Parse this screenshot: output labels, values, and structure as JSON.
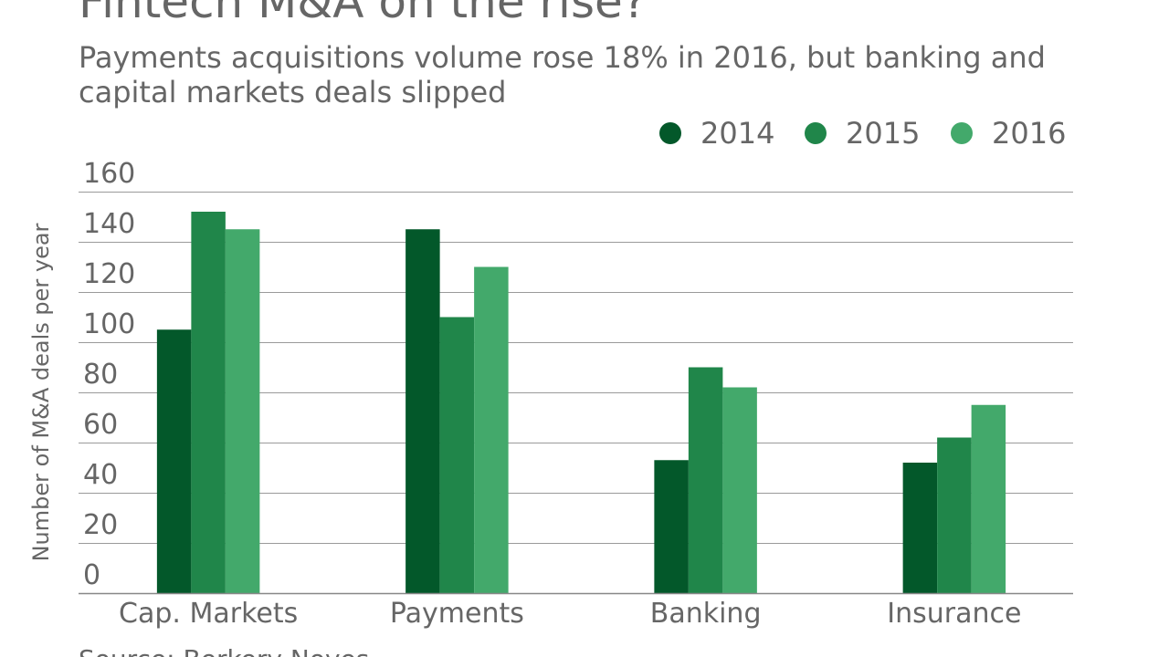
{
  "chart_data": {
    "type": "bar",
    "title": "Fintech M&A on the rise?",
    "subtitle": "Payments acquisitions volume rose 18% in 2016, but banking and capital markets deals slipped",
    "source": "Source: Berkery Noyes",
    "xlabel": "",
    "ylabel": "Number of M&A deals per year",
    "ylim": [
      0,
      160
    ],
    "yticks": [
      "0",
      "20",
      "40",
      "60",
      "80",
      "100",
      "120",
      "140",
      "160"
    ],
    "grid": true,
    "legend_position": "top-right",
    "categories": [
      "Cap. Markets",
      "Payments",
      "Banking",
      "Insurance"
    ],
    "series": [
      {
        "name": "2014",
        "color": "#03582a",
        "values": [
          105,
          145,
          53,
          52
        ]
      },
      {
        "name": "2015",
        "color": "#20864a",
        "values": [
          152,
          110,
          90,
          62
        ]
      },
      {
        "name": "2016",
        "color": "#43a96b",
        "values": [
          145,
          130,
          82,
          75
        ]
      }
    ]
  }
}
